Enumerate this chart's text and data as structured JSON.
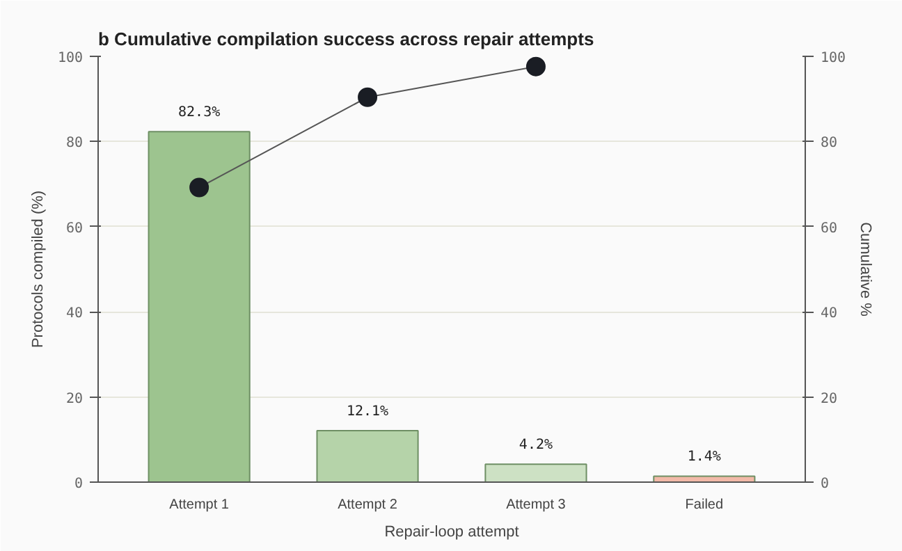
{
  "chart_data": {
    "type": "bar",
    "title": "b Cumulative compilation success across repair attempts",
    "xlabel": "Repair-loop attempt",
    "ylabel": "Protocols compiled (%)",
    "y2label": "Cumulative %",
    "categories": [
      "Attempt 1",
      "Attempt 2",
      "Attempt 3",
      "Failed"
    ],
    "series": [
      {
        "values": [
          82.3,
          12.1,
          4.2,
          1.4
        ],
        "colors": [
          "#9dc48f",
          "#b5d3a9",
          "#cde1c4",
          "#f2b9a8"
        ],
        "value_labels": [
          "82.3%",
          "12.1%",
          "4.2%",
          "1.4%"
        ]
      },
      {
        "type": "line",
        "axis": "y2",
        "color": "#1a1d24",
        "values": [
          69.2,
          90.4,
          97.6,
          null
        ]
      }
    ],
    "ylim": [
      0,
      100
    ],
    "yticks": [
      0,
      20,
      40,
      60,
      80,
      100
    ],
    "y2lim": [
      0,
      100
    ],
    "y2ticks": [
      0,
      20,
      40,
      60,
      80,
      100
    ],
    "grid": "y",
    "marker": "circle",
    "line_style": "solid"
  }
}
